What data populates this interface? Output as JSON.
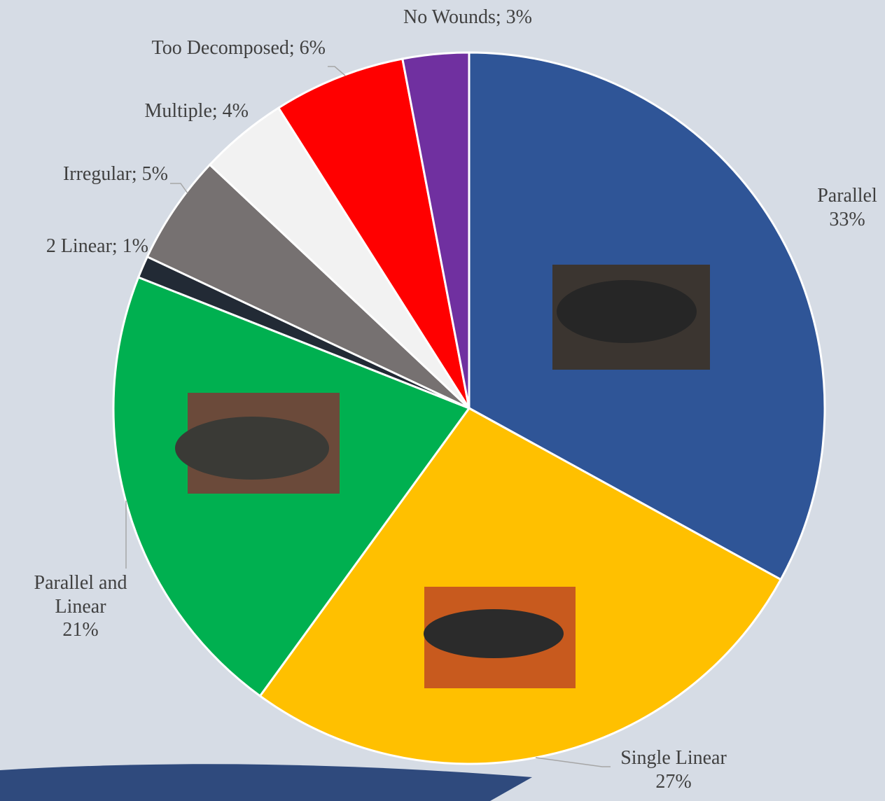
{
  "chart_data": {
    "type": "pie",
    "categories": [
      "Parallel",
      "Single Linear",
      "Parallel and Linear",
      "2 Linear",
      "Irregular",
      "Multiple",
      "Too Decomposed",
      "No Wounds"
    ],
    "values": [
      33,
      27,
      21,
      1,
      5,
      4,
      6,
      3
    ],
    "value_labels": [
      "33%",
      "27%",
      "21%",
      "1%",
      "5%",
      "4%",
      "6%",
      "3%"
    ],
    "colors": [
      "#2f5597",
      "#ffc000",
      "#00b050",
      "#222a35",
      "#767171",
      "#f2f2f2",
      "#ff0000",
      "#7030a0"
    ],
    "label_style": [
      "stacked",
      "stacked",
      "stacked",
      "inline",
      "inline",
      "inline",
      "inline",
      "inline"
    ],
    "label_separator": "; "
  }
}
